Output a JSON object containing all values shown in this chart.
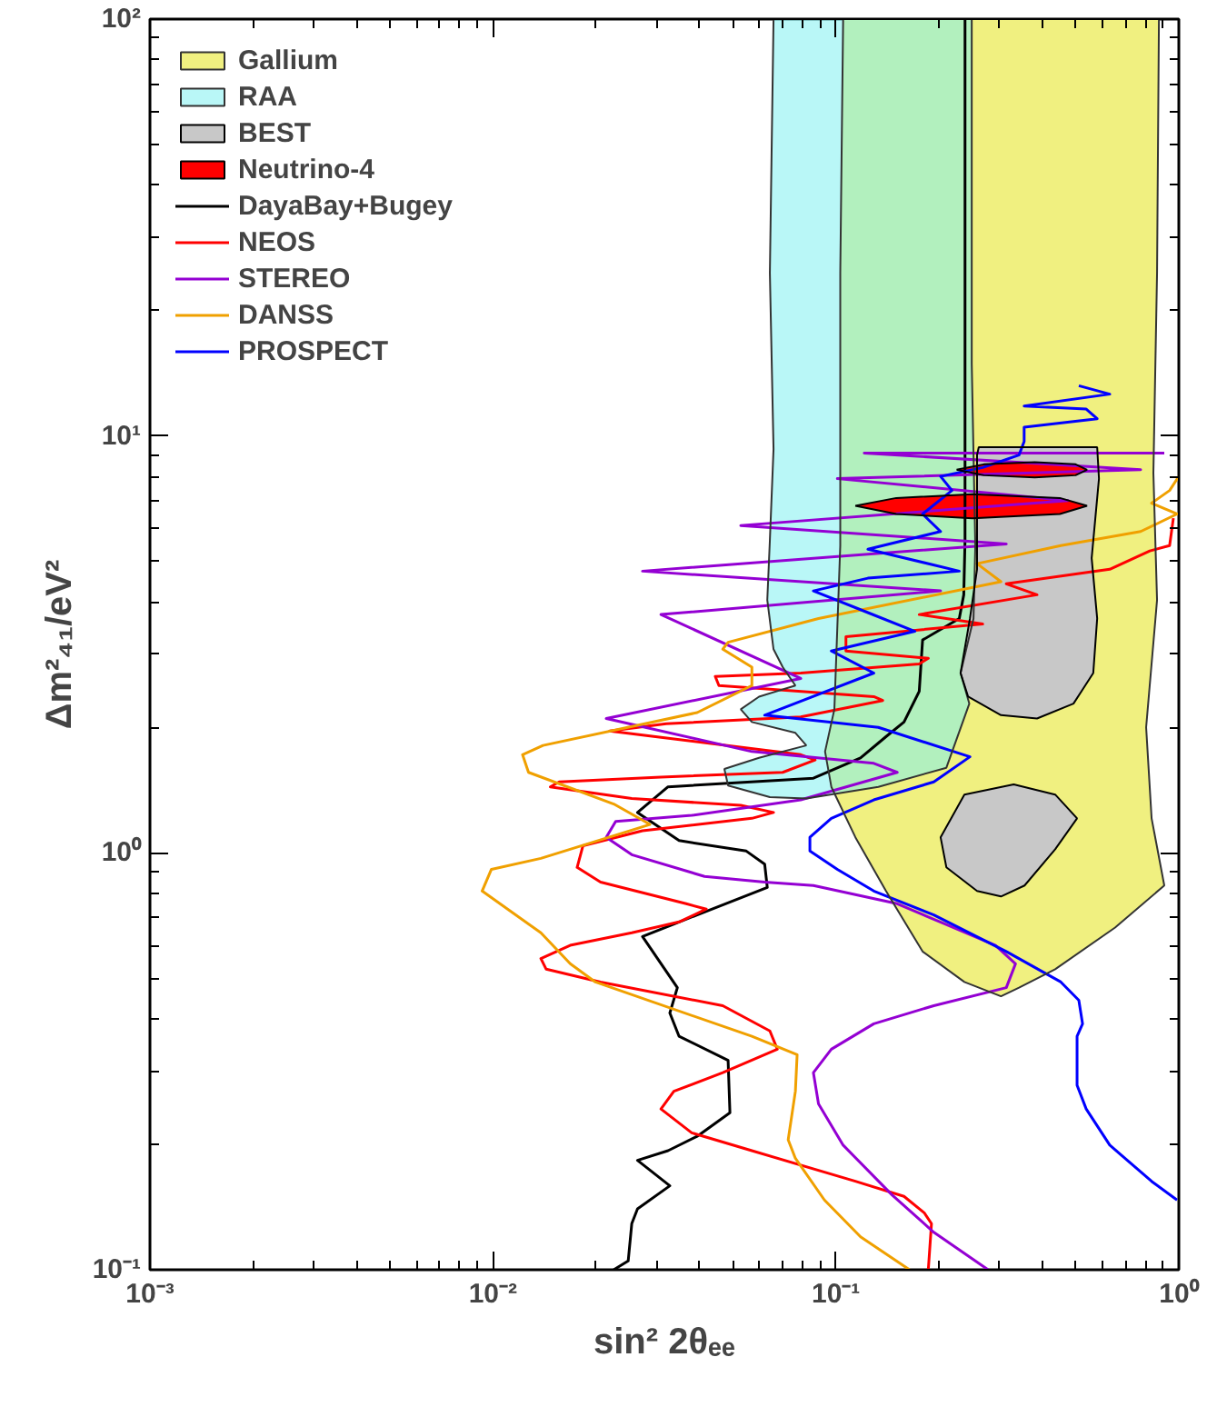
{
  "chart_data": {
    "type": "line",
    "xlabel": "sin² 2θₑₑ",
    "ylabel": "Δm²₄₁/eV²",
    "log": "xy",
    "legend": "top left",
    "grid": false,
    "xlim": [
      0.001,
      1
    ],
    "ylim": [
      0.1,
      100
    ],
    "xticks": [
      {
        "value": 0.001,
        "label": "10⁻³"
      },
      {
        "value": 0.01,
        "label": "10⁻²"
      },
      {
        "value": 0.1,
        "label": "10⁻¹"
      },
      {
        "value": 1,
        "label": "10⁰"
      }
    ],
    "yticks": [
      {
        "value": 0.1,
        "label": "10⁻¹"
      },
      {
        "value": 1,
        "label": "10⁰"
      },
      {
        "value": 10,
        "label": "10¹"
      },
      {
        "value": 100,
        "label": "10²"
      }
    ],
    "series": [
      {
        "name": "Gallium",
        "type": "area",
        "color": "#f0f080",
        "x": [
          0.105,
          0.875,
          0.864,
          0.843,
          0.864,
          0.803,
          0.833,
          0.907,
          0.652,
          0.436,
          0.342,
          0.303,
          0.237,
          0.179,
          0.14,
          0.114,
          0.097,
          0.093,
          0.099,
          0.103,
          0.103
        ],
        "values": [
          100,
          100,
          24.6,
          8.15,
          4.04,
          2.0,
          1.21,
          0.835,
          0.662,
          0.526,
          0.475,
          0.453,
          0.49,
          0.58,
          0.81,
          1.09,
          1.44,
          1.75,
          2.21,
          5.46,
          24.6
        ]
      },
      {
        "name": "RAA",
        "type": "area",
        "color": "#80f0f0",
        "x": [
          0.0658,
          0.249,
          0.249,
          0.255,
          0.252,
          0.231,
          0.245,
          0.21,
          0.133,
          0.082,
          0.0642,
          0.0485,
          0.0473,
          0.0597,
          0.082,
          0.0762,
          0.0569,
          0.0528,
          0.0597,
          0.0762,
          0.07,
          0.0658,
          0.0631,
          0.0642,
          0.0658,
          0.0642
        ],
        "values": [
          100,
          100,
          14.9,
          5.46,
          3.65,
          2.7,
          2.28,
          1.6,
          1.44,
          1.35,
          1.36,
          1.45,
          1.59,
          1.69,
          1.81,
          1.94,
          2.06,
          2.21,
          2.37,
          2.52,
          2.79,
          3.08,
          4.04,
          5.62,
          9.3,
          24.6
        ]
      },
      {
        "name": "BEST",
        "type": "area",
        "color": "#c8c8c8",
        "x": [
          0.261,
          0.578,
          0.585,
          0.557,
          0.578,
          0.563,
          0.493,
          0.386,
          0.303,
          0.243,
          0.231,
          0.246,
          0.258,
          0.258,
          0.258,
          null,
          0.202,
          0.237,
          0.33,
          0.436,
          0.505,
          0.436,
          0.355,
          0.303,
          0.258,
          0.21
        ],
        "values": [
          9.4,
          9.4,
          7.9,
          5.09,
          3.65,
          2.7,
          2.28,
          2.1,
          2.14,
          2.37,
          2.7,
          3.65,
          4.79,
          6.7,
          9.0,
          null,
          1.09,
          1.38,
          1.46,
          1.38,
          1.21,
          1.02,
          0.835,
          0.786,
          0.81,
          0.923
        ]
      },
      {
        "name": "Neutrino-4",
        "type": "area",
        "color": "#ff0000",
        "x": [
          0.225,
          0.27,
          0.38,
          0.5,
          0.54,
          0.5,
          0.38,
          0.27,
          null,
          0.114,
          0.15,
          0.25,
          0.45,
          0.54,
          0.45,
          0.25,
          0.15
        ],
        "values": [
          8.3,
          8.55,
          8.65,
          8.55,
          8.3,
          8.05,
          7.95,
          8.05,
          null,
          6.8,
          7.1,
          7.25,
          7.1,
          6.8,
          6.5,
          6.35,
          6.5
        ]
      },
      {
        "name": "DayaBay+Bugey",
        "color": "#000000",
        "x": [
          0.0225,
          0.0248,
          0.0254,
          0.0264,
          0.0328,
          0.0264,
          0.0324,
          0.0394,
          0.0491,
          0.0485,
          0.0349,
          0.0328,
          0.0345,
          0.0273,
          0.0394,
          0.0631,
          0.062,
          0.0548,
          0.0349,
          0.0264,
          0.0324,
          0.086,
          0.118,
          0.14,
          0.158,
          0.175,
          0.179,
          0.229,
          0.236,
          0.238,
          0.238,
          0.238
        ],
        "values": [
          0.1,
          0.105,
          0.129,
          0.14,
          0.159,
          0.183,
          0.193,
          0.209,
          0.238,
          0.318,
          0.363,
          0.413,
          0.475,
          0.63,
          0.71,
          0.826,
          0.94,
          1.01,
          1.07,
          1.25,
          1.44,
          1.51,
          1.69,
          1.9,
          2.06,
          2.44,
          3.24,
          3.65,
          4.16,
          5.62,
          8.4,
          100
        ]
      },
      {
        "name": "NEOS",
        "color": "#ff0000",
        "x": [
          0.186,
          0.19,
          0.181,
          0.158,
          0.114,
          0.0569,
          0.038,
          0.0309,
          0.0337,
          0.0468,
          0.0675,
          0.0642,
          0.0468,
          0.0206,
          0.0143,
          0.0138,
          0.0168,
          0.0254,
          0.0349,
          0.0419,
          0.0366,
          0.0206,
          0.0176,
          0.0183,
          0.0273,
          0.0569,
          0.0658,
          0.0528,
          0.0254,
          0.0147,
          0.0156,
          0.0309,
          0.07,
          0.087,
          0.079,
          0.0298,
          0.0219,
          0.032,
          0.079,
          0.137,
          0.129,
          0.0456,
          0.0445,
          0.079,
          0.175,
          0.186,
          0.107,
          0.107,
          0.268,
          0.175,
          0.386,
          0.314,
          0.629,
          0.823,
          0.94,
          0.964
        ],
        "values": [
          0.1,
          0.129,
          0.137,
          0.15,
          0.163,
          0.193,
          0.213,
          0.243,
          0.268,
          0.297,
          0.338,
          0.374,
          0.43,
          0.49,
          0.526,
          0.558,
          0.6,
          0.643,
          0.683,
          0.733,
          0.755,
          0.851,
          0.923,
          1.04,
          1.13,
          1.21,
          1.25,
          1.3,
          1.35,
          1.44,
          1.48,
          1.52,
          1.56,
          1.67,
          1.72,
          1.9,
          1.96,
          2.04,
          2.12,
          2.32,
          2.37,
          2.52,
          2.65,
          2.7,
          2.84,
          2.93,
          3.05,
          3.3,
          3.54,
          3.73,
          4.16,
          4.42,
          4.79,
          5.3,
          5.46,
          6.35
        ]
      },
      {
        "name": "STEREO",
        "color": "#9400d3",
        "x": [
          0.278,
          0.193,
          0.146,
          0.105,
          0.089,
          0.086,
          0.097,
          0.129,
          0.193,
          0.314,
          0.334,
          0.292,
          0.151,
          0.086,
          0.062,
          0.0414,
          0.0254,
          0.0214,
          0.0228,
          0.038,
          0.079,
          0.151,
          0.129,
          0.0569,
          0.0214,
          0.079,
          0.0309,
          0.202,
          0.0273,
          0.314,
          0.0528,
          0.475,
          0.101,
          0.774,
          0.121,
          0.907
        ],
        "values": [
          0.1,
          0.123,
          0.151,
          0.199,
          0.25,
          0.297,
          0.338,
          0.389,
          0.43,
          0.475,
          0.542,
          0.6,
          0.755,
          0.835,
          0.851,
          0.878,
          0.99,
          1.09,
          1.19,
          1.23,
          1.34,
          1.56,
          1.64,
          1.75,
          2.1,
          2.62,
          3.73,
          4.25,
          4.74,
          5.51,
          6.1,
          7.0,
          7.9,
          8.3,
          9.1,
          9.1
        ]
      },
      {
        "name": "DANSS",
        "color": "#f0a000",
        "x": [
          0.164,
          0.118,
          0.0926,
          0.0762,
          0.0726,
          0.0762,
          0.0771,
          0.0569,
          0.0199,
          0.0168,
          0.0138,
          0.0093,
          0.0099,
          0.0138,
          0.0287,
          0.0225,
          0.0127,
          0.0122,
          0.014,
          0.0394,
          0.0569,
          0.0569,
          0.0468,
          0.0485,
          0.089,
          0.303,
          0.258,
          0.453,
          0.774,
          0.988,
          0.833,
          0.94,
          1.0
        ],
        "values": [
          0.1,
          0.12,
          0.147,
          0.185,
          0.205,
          0.268,
          0.328,
          0.363,
          0.49,
          0.542,
          0.643,
          0.81,
          0.913,
          0.97,
          1.17,
          1.31,
          1.56,
          1.72,
          1.81,
          2.17,
          2.52,
          2.79,
          3.08,
          3.2,
          3.65,
          4.47,
          4.94,
          5.46,
          5.9,
          6.5,
          6.9,
          7.4,
          8.0
        ]
      },
      {
        "name": "PROSPECT",
        "color": "#0000ff",
        "x": [
          0.988,
          0.833,
          0.629,
          0.537,
          0.505,
          0.505,
          0.524,
          0.511,
          0.453,
          0.314,
          0.193,
          0.129,
          0.101,
          0.084,
          0.084,
          0.097,
          0.129,
          0.193,
          0.246,
          0.133,
          0.062,
          0.129,
          0.097,
          0.17,
          0.124,
          0.086,
          0.124,
          0.229,
          0.124,
          0.202,
          0.179,
          0.218,
          0.202,
          0.268,
          0.342,
          0.354,
          0.354,
          0.578,
          0.537,
          0.354,
          0.629,
          0.511
        ],
        "values": [
          0.147,
          0.163,
          0.199,
          0.243,
          0.277,
          0.363,
          0.389,
          0.443,
          0.49,
          0.58,
          0.71,
          0.81,
          0.913,
          1.01,
          1.09,
          1.21,
          1.34,
          1.48,
          1.7,
          2.0,
          2.14,
          2.7,
          3.05,
          3.4,
          3.77,
          4.25,
          4.56,
          4.74,
          5.35,
          5.9,
          6.5,
          7.4,
          8.0,
          8.4,
          9.0,
          9.7,
          10.5,
          11.0,
          11.6,
          11.8,
          12.6,
          13.2
        ]
      }
    ]
  }
}
